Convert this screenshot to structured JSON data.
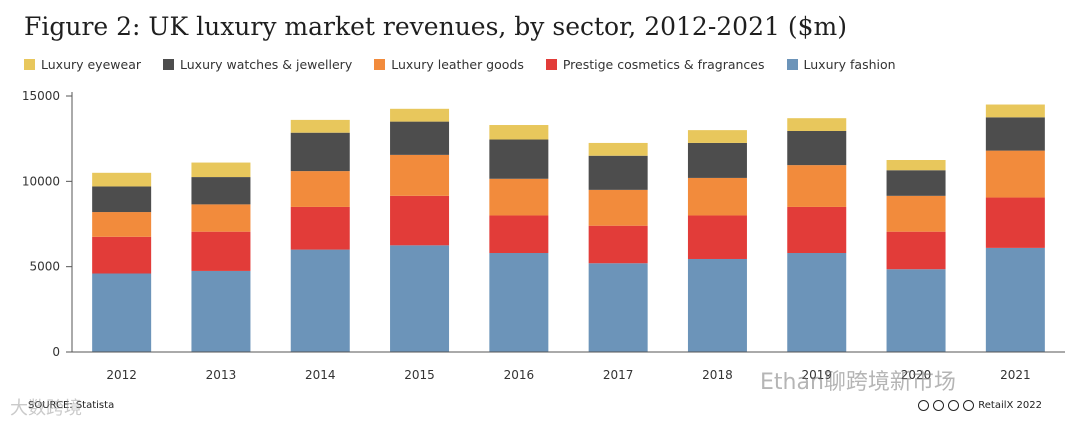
{
  "page": {
    "title": "Figure 2: UK luxury market revenues, by sector, 2012-2021 ($m)",
    "source": "SOURCE: Statista",
    "copyright": "RetailX 2022",
    "watermark_right": "Ethan聊跨境新市场",
    "watermark_left": "大数跨境"
  },
  "chart_data": {
    "type": "bar",
    "stacked": true,
    "title": "Figure 2: UK luxury market revenues, by sector, 2012-2021 ($m)",
    "xlabel": "",
    "ylabel": "",
    "categories": [
      "2012",
      "2013",
      "2014",
      "2015",
      "2016",
      "2017",
      "2018",
      "2019",
      "2020",
      "2021"
    ],
    "ylim": [
      0,
      15000
    ],
    "yticks": [
      "0",
      "5000",
      "10000",
      "15000"
    ],
    "grid": false,
    "legend_position": "top",
    "series": [
      {
        "name": "Luxury fashion",
        "color": "#6c94b9",
        "values": [
          4600,
          4750,
          6000,
          6250,
          5800,
          5200,
          5450,
          5800,
          4850,
          6100
        ]
      },
      {
        "name": "Prestige cosmetics & fragrances",
        "color": "#e23c39",
        "values": [
          2150,
          2300,
          2500,
          2900,
          2200,
          2200,
          2550,
          2700,
          2200,
          2950
        ]
      },
      {
        "name": "Luxury leather goods",
        "color": "#f28b3c",
        "values": [
          1450,
          1600,
          2100,
          2400,
          2150,
          2100,
          2200,
          2450,
          2100,
          2750
        ]
      },
      {
        "name": "Luxury watches & jewellery",
        "color": "#4d4d4d",
        "values": [
          1500,
          1600,
          2250,
          1950,
          2300,
          2000,
          2050,
          2000,
          1500,
          1950
        ]
      },
      {
        "name": "Luxury eyewear",
        "color": "#e8c75c",
        "values": [
          800,
          850,
          750,
          750,
          850,
          750,
          750,
          750,
          600,
          750
        ]
      }
    ],
    "legend_order": [
      "Luxury eyewear",
      "Luxury watches & jewellery",
      "Luxury leather goods",
      "Prestige cosmetics & fragrances",
      "Luxury fashion"
    ]
  }
}
